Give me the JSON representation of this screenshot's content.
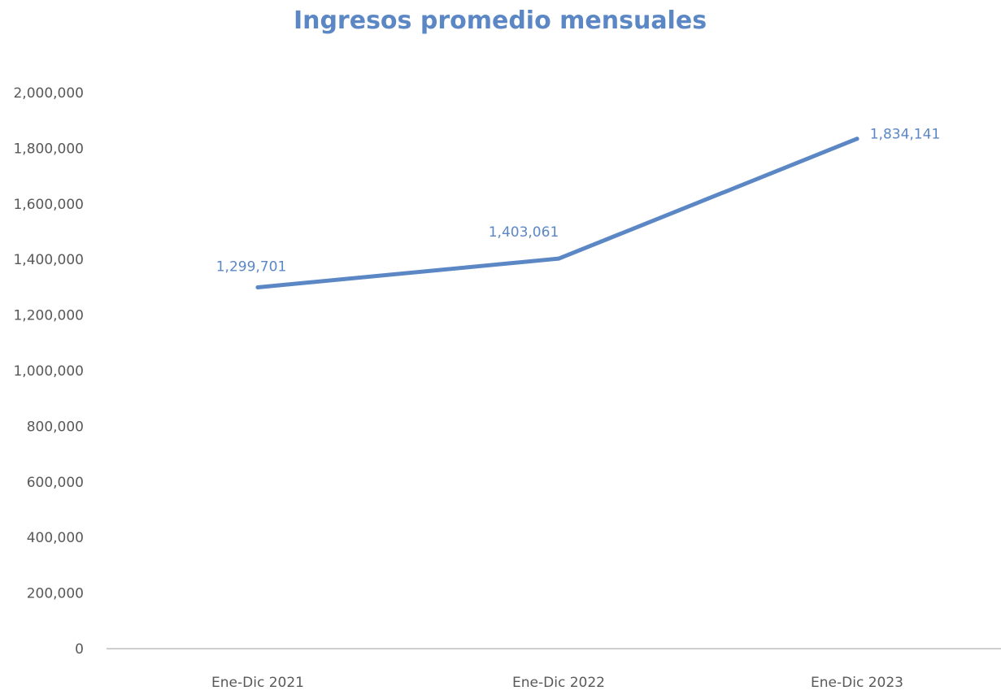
{
  "colors": {
    "series": "#5b87c5",
    "title": "#5b87c5",
    "axis_text": "#595959",
    "axis_line": "#bfbfbf"
  },
  "chart_data": {
    "type": "line",
    "title": "Ingresos promedio mensuales",
    "xlabel": "",
    "ylabel": "",
    "categories": [
      "Ene-Dic 2021",
      "Ene-Dic 2022",
      "Ene-Dic 2023"
    ],
    "series": [
      {
        "values": [
          1299701,
          1403061,
          1834141
        ],
        "data_labels": [
          "1,299,701",
          "1,403,061",
          "1,834,141"
        ]
      }
    ],
    "ylim": [
      0,
      2000000
    ],
    "yticks": [
      0,
      200000,
      400000,
      600000,
      800000,
      1000000,
      1200000,
      1400000,
      1600000,
      1800000,
      2000000
    ],
    "ytick_labels": [
      "0",
      "200,000",
      "400,000",
      "600,000",
      "800,000",
      "1,000,000",
      "1,200,000",
      "1,400,000",
      "1,600,000",
      "1,800,000",
      "2,000,000"
    ],
    "grid": false,
    "legend": "none"
  }
}
